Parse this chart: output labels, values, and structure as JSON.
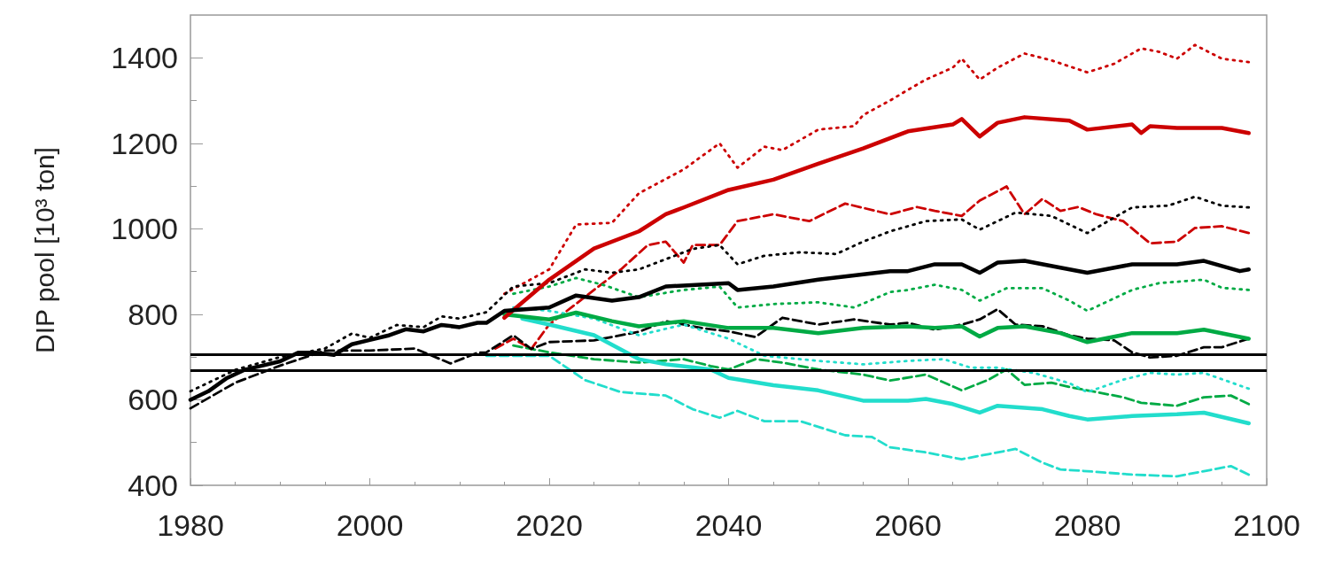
{
  "chart_data": {
    "type": "line",
    "ylabel": "DIP pool [10³ ton]",
    "xlim": [
      1980,
      2100
    ],
    "xticks": [
      1980,
      2000,
      2020,
      2040,
      2060,
      2080,
      2100
    ],
    "ylim": [
      400,
      1500
    ],
    "yticks": [
      400,
      600,
      800,
      1000,
      1200,
      1400
    ],
    "grid": false,
    "marker": "none",
    "ref_lines": [
      {
        "axis": "y",
        "value": 707,
        "color": "#000000"
      },
      {
        "axis": "y",
        "value": 669,
        "color": "#000000"
      }
    ],
    "series": [
      {
        "color": "#22ddcc",
        "line_style": "dashed",
        "x": [
          2013,
          2020,
          2024,
          2028,
          2033,
          2036,
          2039,
          2041,
          2044,
          2048,
          2053,
          2056,
          2058,
          2062,
          2066,
          2069,
          2072,
          2075,
          2077,
          2080,
          2085,
          2090,
          2093,
          2096,
          2098
        ],
        "values": [
          703,
          703,
          646,
          618,
          610,
          578,
          558,
          574,
          550,
          550,
          517,
          513,
          489,
          477,
          461,
          473,
          485,
          453,
          437,
          433,
          425,
          421,
          433,
          445,
          425
        ]
      },
      {
        "color": "#00aa44",
        "line_style": "dashed",
        "x": [
          2016,
          2020,
          2025,
          2030,
          2035,
          2038,
          2040,
          2043,
          2046,
          2050,
          2055,
          2058,
          2062,
          2066,
          2069,
          2071,
          2073,
          2076,
          2078,
          2080,
          2084,
          2086,
          2090,
          2093,
          2096,
          2098
        ],
        "values": [
          727,
          711,
          695,
          687,
          695,
          679,
          671,
          695,
          687,
          671,
          659,
          645,
          659,
          622,
          647,
          671,
          635,
          640,
          630,
          622,
          606,
          593,
          586,
          606,
          610,
          590
        ]
      },
      {
        "color": "#cc0000",
        "line_style": "dashed",
        "x": [
          2014,
          2016,
          2018,
          2020,
          2025,
          2028,
          2031,
          2033,
          2035,
          2036,
          2039,
          2041,
          2045,
          2049,
          2053,
          2058,
          2061,
          2063,
          2066,
          2068,
          2071,
          2073,
          2075,
          2077,
          2079,
          2081,
          2084,
          2087,
          2090,
          2092,
          2095,
          2098
        ],
        "values": [
          720,
          743,
          719,
          776,
          857,
          905,
          962,
          970,
          921,
          962,
          962,
          1018,
          1034,
          1018,
          1059,
          1034,
          1051,
          1042,
          1030,
          1066,
          1099,
          1034,
          1070,
          1042,
          1051,
          1034,
          1018,
          966,
          970,
          1002,
          1006,
          990
        ]
      },
      {
        "color": "#000000",
        "line_style": "dashed",
        "x": [
          1980,
          1985,
          1990,
          1995,
          2000,
          2005,
          2009,
          2012,
          2013,
          2016,
          2018,
          2020,
          2025,
          2030,
          2033,
          2037,
          2040,
          2043,
          2046,
          2050,
          2054,
          2058,
          2060,
          2063,
          2066,
          2068,
          2070,
          2072,
          2075,
          2078,
          2080,
          2083,
          2085,
          2087,
          2090,
          2093,
          2095,
          2098
        ],
        "values": [
          580,
          640,
          680,
          715,
          715,
          720,
          685,
          710,
          711,
          751,
          719,
          735,
          739,
          759,
          784,
          768,
          760,
          747,
          792,
          776,
          788,
          776,
          780,
          764,
          776,
          788,
          812,
          776,
          772,
          751,
          743,
          739,
          711,
          699,
          703,
          723,
          723,
          743
        ]
      },
      {
        "color": "#22ddcc",
        "line_style": "dotted",
        "x": [
          2016,
          2020,
          2025,
          2030,
          2035,
          2040,
          2044,
          2050,
          2055,
          2060,
          2064,
          2067,
          2070,
          2074,
          2078,
          2080,
          2084,
          2087,
          2090,
          2093,
          2098
        ],
        "values": [
          816,
          808,
          790,
          751,
          776,
          743,
          703,
          691,
          683,
          691,
          695,
          675,
          675,
          663,
          639,
          618,
          647,
          663,
          659,
          663,
          626
        ]
      },
      {
        "color": "#00aa44",
        "line_style": "dotted",
        "x": [
          2016,
          2020,
          2023,
          2026,
          2030,
          2035,
          2039,
          2041,
          2045,
          2050,
          2054,
          2058,
          2060,
          2063,
          2066,
          2068,
          2071,
          2075,
          2078,
          2080,
          2085,
          2088,
          2093,
          2095,
          2098
        ],
        "values": [
          848,
          865,
          885,
          869,
          840,
          857,
          865,
          816,
          824,
          828,
          816,
          852,
          857,
          869,
          857,
          832,
          861,
          861,
          832,
          808,
          857,
          873,
          881,
          862,
          857
        ]
      },
      {
        "color": "#cc0000",
        "line_style": "dotted",
        "x": [
          2015,
          2020,
          2023,
          2027,
          2030,
          2035,
          2039,
          2041,
          2044,
          2046,
          2050,
          2054,
          2055,
          2058,
          2060,
          2062,
          2065,
          2066,
          2068,
          2070,
          2073,
          2076,
          2080,
          2083,
          2086,
          2088,
          2090,
          2092,
          2095,
          2098
        ],
        "values": [
          848,
          905,
          1010,
          1014,
          1083,
          1139,
          1200,
          1143,
          1192,
          1184,
          1232,
          1240,
          1266,
          1300,
          1325,
          1349,
          1377,
          1398,
          1349,
          1377,
          1410,
          1394,
          1366,
          1386,
          1422,
          1414,
          1398,
          1430,
          1398,
          1390
        ]
      },
      {
        "color": "#000000",
        "line_style": "dotted",
        "x": [
          1980,
          1985,
          1990,
          1995,
          1998,
          2000,
          2003,
          2006,
          2008,
          2010,
          2013,
          2016,
          2020,
          2024,
          2027,
          2030,
          2033,
          2036,
          2039,
          2041,
          2044,
          2048,
          2052,
          2055,
          2058,
          2062,
          2066,
          2068,
          2072,
          2076,
          2080,
          2085,
          2089,
          2092,
          2095,
          2098
        ],
        "values": [
          620,
          670,
          700,
          720,
          755,
          745,
          775,
          770,
          795,
          790,
          805,
          865,
          873,
          905,
          897,
          905,
          929,
          953,
          962,
          917,
          937,
          945,
          941,
          970,
          994,
          1018,
          1022,
          998,
          1038,
          1030,
          990,
          1050,
          1054,
          1075,
          1054,
          1050
        ]
      },
      {
        "color": "#22ddcc",
        "line_style": "solid",
        "x": [
          2017,
          2020,
          2025,
          2030,
          2033,
          2038,
          2040,
          2045,
          2050,
          2055,
          2060,
          2062,
          2065,
          2068,
          2070,
          2075,
          2078,
          2080,
          2085,
          2090,
          2093,
          2098
        ],
        "values": [
          790,
          776,
          751,
          695,
          683,
          671,
          651,
          634,
          622,
          598,
          598,
          602,
          590,
          570,
          586,
          578,
          562,
          554,
          562,
          566,
          570,
          545
        ]
      },
      {
        "color": "#00aa44",
        "line_style": "solid",
        "x": [
          2015,
          2020,
          2023,
          2027,
          2030,
          2035,
          2040,
          2045,
          2050,
          2055,
          2060,
          2063,
          2066,
          2068,
          2070,
          2073,
          2077,
          2080,
          2085,
          2090,
          2093,
          2098
        ],
        "values": [
          800,
          788,
          804,
          784,
          772,
          784,
          768,
          768,
          756,
          768,
          772,
          768,
          772,
          748,
          768,
          772,
          756,
          735,
          756,
          756,
          764,
          743
        ]
      },
      {
        "color": "#cc0000",
        "line_style": "solid",
        "x": [
          2015,
          2020,
          2025,
          2030,
          2033,
          2035,
          2040,
          2045,
          2050,
          2055,
          2060,
          2065,
          2066,
          2068,
          2070,
          2073,
          2078,
          2080,
          2085,
          2086,
          2087,
          2090,
          2095,
          2098
        ],
        "values": [
          792,
          881,
          954,
          994,
          1034,
          1050,
          1091,
          1115,
          1152,
          1188,
          1228,
          1244,
          1257,
          1216,
          1248,
          1261,
          1253,
          1232,
          1244,
          1224,
          1240,
          1236,
          1236,
          1224
        ]
      },
      {
        "color": "#000000",
        "line_style": "solid",
        "x": [
          1980,
          1982,
          1984,
          1986,
          1988,
          1990,
          1992,
          1994,
          1996,
          1998,
          2000,
          2002,
          2004,
          2006,
          2008,
          2010,
          2012,
          2013,
          2015,
          2020,
          2023,
          2027,
          2030,
          2033,
          2040,
          2041,
          2045,
          2050,
          2058,
          2060,
          2063,
          2066,
          2068,
          2070,
          2073,
          2077,
          2080,
          2085,
          2090,
          2093,
          2097,
          2098
        ],
        "values": [
          600,
          620,
          650,
          670,
          680,
          690,
          710,
          710,
          705,
          730,
          740,
          750,
          765,
          760,
          775,
          770,
          780,
          780,
          808,
          816,
          844,
          832,
          840,
          865,
          873,
          857,
          865,
          881,
          901,
          901,
          917,
          917,
          897,
          921,
          925,
          909,
          897,
          917,
          917,
          925,
          901,
          905
        ]
      }
    ]
  }
}
